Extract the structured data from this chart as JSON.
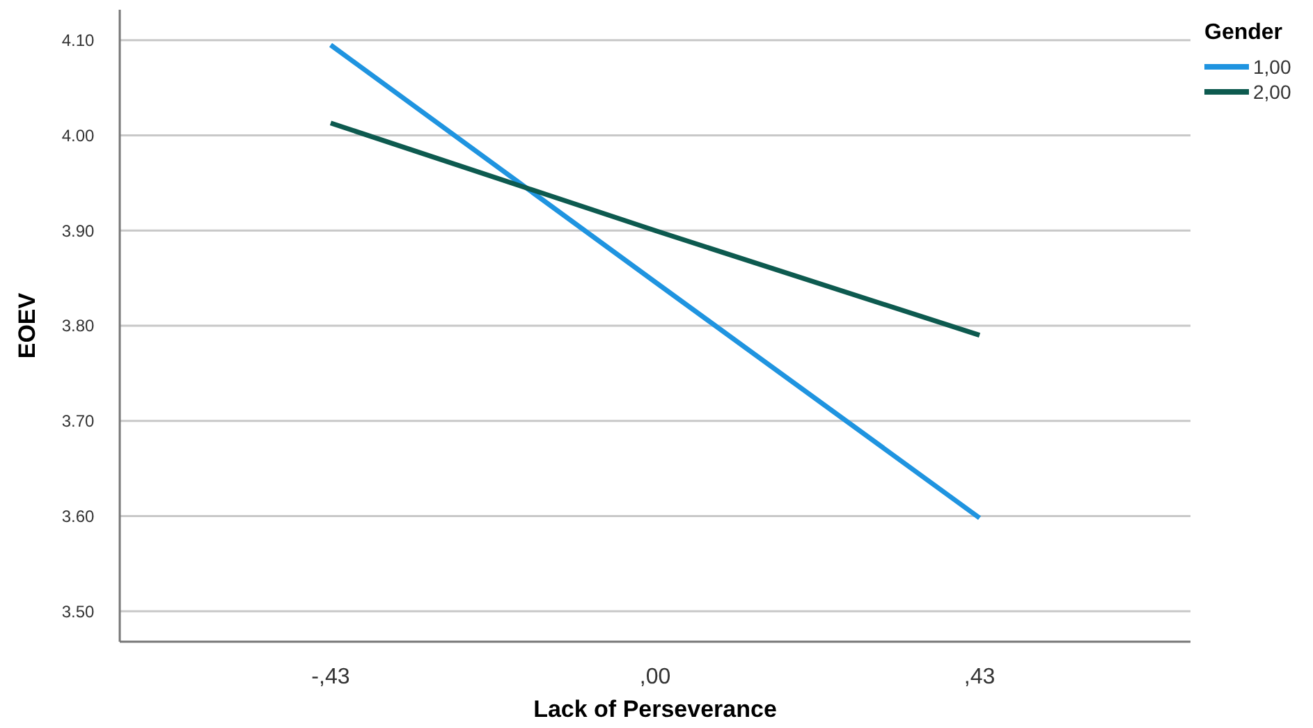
{
  "chart_data": {
    "type": "line",
    "xlabel": "Lack of Perseverance",
    "ylabel": "EOEV",
    "legend_title": "Gender",
    "categories": [
      "-,43",
      ",00",
      ",43"
    ],
    "series": [
      {
        "name": "1,00",
        "color": "#1f94e0",
        "values": [
          4.095,
          3.846,
          3.598
        ]
      },
      {
        "name": "2,00",
        "color": "#0d5a4f",
        "values": [
          4.013,
          3.9,
          3.79
        ]
      }
    ],
    "ylim": [
      3.468,
      4.132
    ],
    "yticks": [
      {
        "value": 3.5,
        "label": "3.50"
      },
      {
        "value": 3.6,
        "label": "3.60"
      },
      {
        "value": 3.7,
        "label": "3.70"
      },
      {
        "value": 3.8,
        "label": "3.80"
      },
      {
        "value": 3.9,
        "label": "3.90"
      },
      {
        "value": 4.0,
        "label": "4.00"
      },
      {
        "value": 4.1,
        "label": "4.10"
      }
    ],
    "grid": "y",
    "legend": "top right",
    "marker": "none",
    "line_style": "solid"
  }
}
